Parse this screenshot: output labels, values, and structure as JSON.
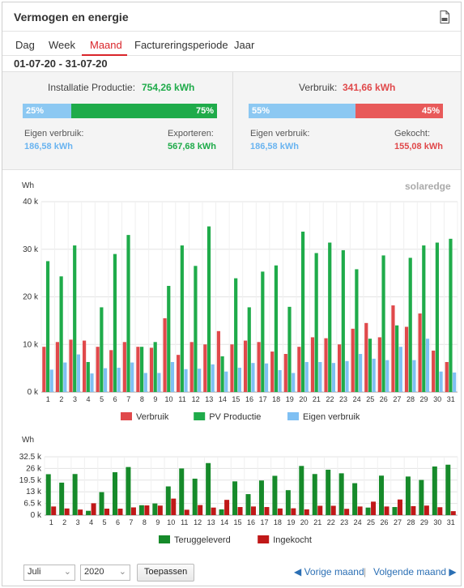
{
  "header": {
    "title": "Vermogen en energie",
    "doc_icon": "pdf-document-icon"
  },
  "tabs": [
    "Dag",
    "Week",
    "Maand",
    "Factureringsperiode",
    "Jaar"
  ],
  "active_tab": "Maand",
  "date_range": "01-07-20 - 31-07-20",
  "summary": {
    "production": {
      "label": "Installatie Productie:",
      "value": "754,26 kWh",
      "bar_left_pct": "25%",
      "bar_right_pct": "75%",
      "left_fraction": 0.25,
      "left_label": "Eigen verbruik:",
      "left_value": "186,58 kWh",
      "right_label": "Exporteren:",
      "right_value": "567,68 kWh"
    },
    "consumption": {
      "label": "Verbruik:",
      "value": "341,66 kWh",
      "bar_left_pct": "55%",
      "bar_right_pct": "45%",
      "left_fraction": 0.55,
      "left_label": "Eigen verbruik:",
      "left_value": "186,58 kWh",
      "right_label": "Gekocht:",
      "right_value": "155,08 kWh"
    }
  },
  "colors": {
    "green": "#1fab4a",
    "red": "#e0494b",
    "blue": "#7fc0f3",
    "darkgreen": "#168a2a",
    "darkred": "#c01818"
  },
  "brand_text": "solaredge",
  "chart_data": [
    {
      "type": "bar",
      "unit_label": "Wh",
      "yticks": [
        "0 k",
        "10 k",
        "20 k",
        "30 k",
        "40 k"
      ],
      "ylim": [
        0,
        40000
      ],
      "categories": [
        "1",
        "2",
        "3",
        "4",
        "5",
        "6",
        "7",
        "8",
        "9",
        "10",
        "11",
        "12",
        "13",
        "14",
        "15",
        "16",
        "17",
        "18",
        "19",
        "20",
        "21",
        "22",
        "23",
        "24",
        "25",
        "26",
        "27",
        "28",
        "29",
        "30",
        "31"
      ],
      "series": [
        {
          "name": "Verbruik",
          "color": "#e0494b",
          "values": [
            9500,
            10500,
            11000,
            10800,
            9500,
            8800,
            10500,
            9500,
            9300,
            15500,
            7800,
            10500,
            10000,
            12800,
            10000,
            10800,
            10500,
            8500,
            8000,
            9500,
            11500,
            11300,
            10000,
            13300,
            14500,
            11500,
            18200,
            13700,
            16500,
            8700,
            6300
          ]
        },
        {
          "name": "PV Productie",
          "color": "#1fab4a",
          "values": [
            27500,
            24300,
            30800,
            6300,
            17800,
            29000,
            33000,
            9500,
            10500,
            22300,
            30800,
            26500,
            34800,
            7500,
            23900,
            17800,
            25300,
            26600,
            17900,
            33700,
            29200,
            31400,
            29800,
            25800,
            11200,
            28700,
            14000,
            28200,
            30800,
            31400,
            32200
          ]
        },
        {
          "name": "Eigen verbruik",
          "color": "#7fc0f3",
          "values": [
            4700,
            6200,
            7900,
            3900,
            5000,
            5100,
            6200,
            4000,
            4000,
            6300,
            4800,
            4900,
            5800,
            4300,
            5100,
            6100,
            6000,
            4600,
            4000,
            6300,
            6300,
            6100,
            6500,
            8000,
            7000,
            6700,
            9500,
            6700,
            11200,
            4300,
            4100
          ]
        }
      ]
    },
    {
      "type": "bar",
      "unit_label": "Wh",
      "yticks": [
        "0 k",
        "6.5 k",
        "13 k",
        "19.5 k",
        "26 k",
        "32.5 k"
      ],
      "ylim": [
        0,
        32500
      ],
      "categories": [
        "1",
        "2",
        "3",
        "4",
        "5",
        "6",
        "7",
        "8",
        "9",
        "10",
        "11",
        "12",
        "13",
        "14",
        "15",
        "16",
        "17",
        "18",
        "19",
        "20",
        "21",
        "22",
        "23",
        "24",
        "25",
        "26",
        "27",
        "28",
        "29",
        "30",
        "31"
      ],
      "series": [
        {
          "name": "Teruggeleverd",
          "color": "#168a2a",
          "values": [
            22800,
            18100,
            22900,
            2400,
            12800,
            23900,
            26800,
            5500,
            6500,
            16000,
            26000,
            20300,
            29000,
            3200,
            18800,
            11700,
            19300,
            21900,
            13900,
            27400,
            22900,
            25300,
            23300,
            17800,
            4200,
            22000,
            4500,
            21500,
            19600,
            27100,
            28100
          ]
        },
        {
          "name": "Ingekocht",
          "color": "#c01818",
          "values": [
            4800,
            3700,
            3100,
            6600,
            3600,
            3600,
            4300,
            5400,
            5300,
            9200,
            3000,
            5600,
            4200,
            8500,
            4500,
            4800,
            4500,
            3700,
            3800,
            3200,
            5200,
            5200,
            3500,
            4800,
            7500,
            4800,
            8700,
            5000,
            5300,
            4400,
            2200
          ]
        }
      ]
    }
  ],
  "footer": {
    "month_value": "Juli",
    "year_value": "2020",
    "apply_label": "Toepassen",
    "prev_label": "Vorige maand",
    "separator": "|",
    "next_label": "Volgende maand"
  }
}
